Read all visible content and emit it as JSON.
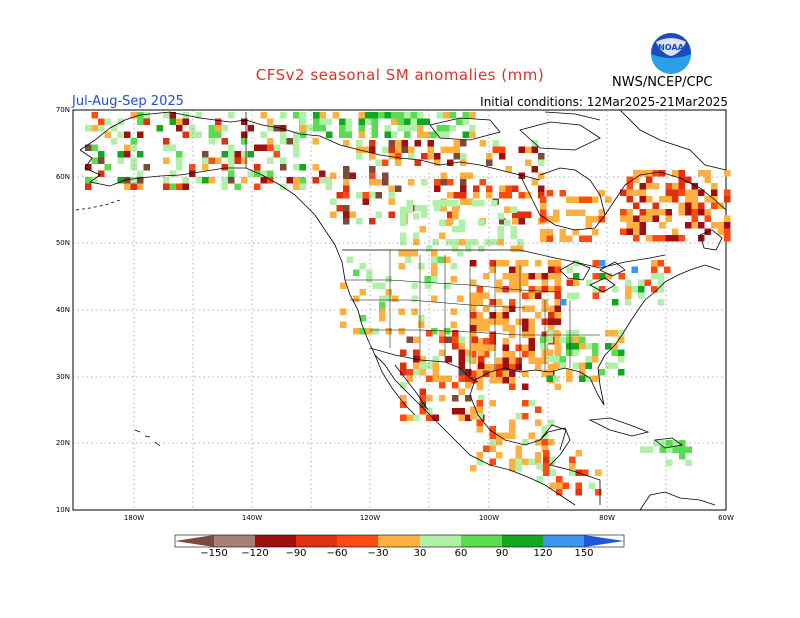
{
  "header": {
    "title": "CFSv2 seasonal SM anomalies (mm)",
    "season": "Jul-Aug-Sep 2025",
    "initial_conditions": "Initial conditions: 12Mar2025-21Mar2025",
    "agency": "NWS/NCEP/CPC",
    "logo_text": "NOAA"
  },
  "map": {
    "region": "North America",
    "lat_labels": [
      "70N",
      "60N",
      "50N",
      "40N",
      "30N",
      "20N",
      "10N"
    ],
    "lon_labels": [
      "180W",
      "140W",
      "120W",
      "100W",
      "80W",
      "60W"
    ],
    "grid": true
  },
  "colorbar": {
    "labels": [
      "−150",
      "−120",
      "−90",
      "−60",
      "−30",
      "30",
      "60",
      "90",
      "120",
      "150"
    ],
    "colors": {
      "lt150": "#7a4a3a",
      "m150_m120": "#a8807a",
      "m120_m90": "#a01010",
      "m90_m60": "#e03010",
      "m60_m30": "#ff4a10",
      "m30_m0": "#ffb040",
      "neutral": "#ffffff",
      "p30_p60": "#b0f0a8",
      "p60_p90": "#5adc50",
      "p90_p120": "#10a820",
      "p120_p150": "#3a96f0",
      "gt150": "#1a5ad8"
    }
  }
}
